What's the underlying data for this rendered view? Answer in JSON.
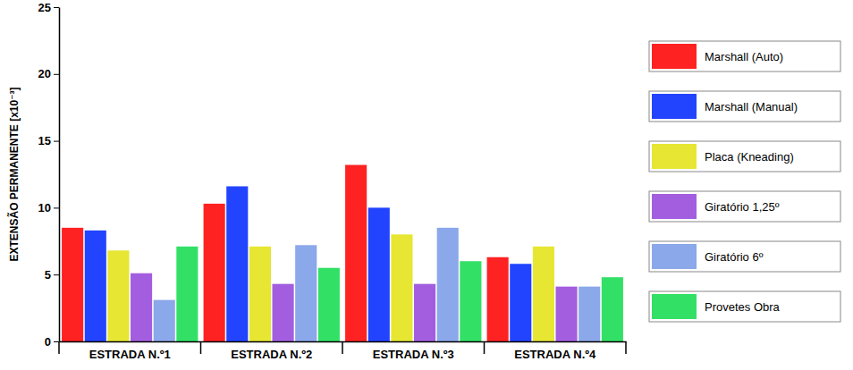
{
  "chart_data": {
    "type": "bar",
    "y_label": "EXTENSÃO PERMANENTE [x10⁻³]",
    "categories": [
      "ESTRADA N.º1",
      "ESTRADA N.º2",
      "ESTRADA N.º3",
      "ESTRADA N.º4"
    ],
    "series": [
      {
        "name": "Marshall (Auto)",
        "color": "#ff2222",
        "values": [
          8.5,
          10.3,
          13.2,
          6.3
        ]
      },
      {
        "name": "Marshall (Manual)",
        "color": "#2244ff",
        "values": [
          8.3,
          11.6,
          10.0,
          5.8
        ]
      },
      {
        "name": "Placa (Kneading)",
        "color": "#e6e633",
        "values": [
          6.8,
          7.1,
          8.0,
          7.1
        ]
      },
      {
        "name": "Giratório 1,25º",
        "color": "#a35ee0",
        "values": [
          5.1,
          4.3,
          4.3,
          4.1
        ]
      },
      {
        "name": "Giratório 6º",
        "color": "#8aa8ea",
        "values": [
          3.1,
          7.2,
          8.5,
          4.1
        ]
      },
      {
        "name": "Provetes Obra",
        "color": "#33e066",
        "values": [
          7.1,
          5.5,
          6.0,
          4.8
        ]
      }
    ],
    "ylim": [
      0,
      25
    ],
    "yticks": [
      0,
      5,
      10,
      15,
      20,
      25
    ],
    "grid": false,
    "legend": "right"
  }
}
